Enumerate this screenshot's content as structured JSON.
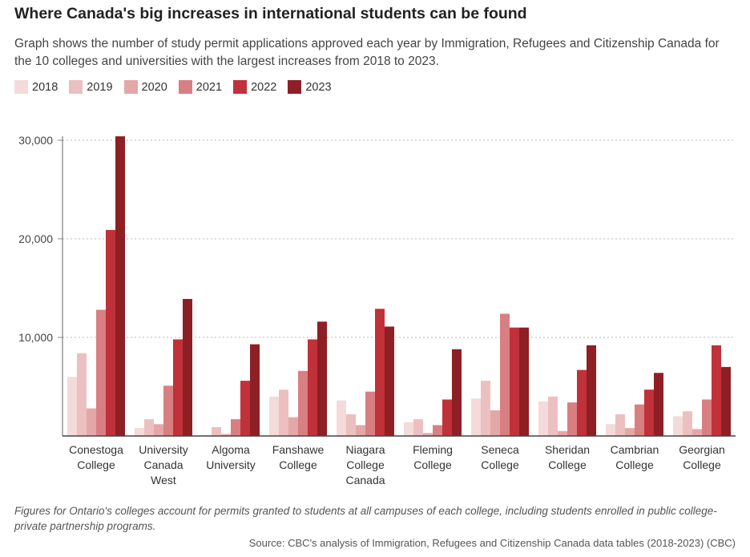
{
  "chart_data": {
    "type": "bar",
    "title": "Where Canada's big increases in international students can be found",
    "subtitle": "Graph shows the number of study permit applications approved each year by Immigration, Refugees and Citizenship Canada for the 10 colleges and universities with the largest increases from 2018 to 2023.",
    "categories": [
      [
        "Conestoga",
        "College"
      ],
      [
        "University",
        "Canada",
        "West"
      ],
      [
        "Algoma",
        "University"
      ],
      [
        "Fanshawe",
        "College"
      ],
      [
        "Niagara",
        "College",
        "Canada"
      ],
      [
        "Fleming",
        "College"
      ],
      [
        "Seneca",
        "College"
      ],
      [
        "Sheridan",
        "College"
      ],
      [
        "Cambrian",
        "College"
      ],
      [
        "Georgian",
        "College"
      ]
    ],
    "series": [
      {
        "name": "2018",
        "color": "#f4dada",
        "values": [
          6000,
          800,
          100,
          4000,
          3600,
          1400,
          3800,
          3500,
          1200,
          2000
        ]
      },
      {
        "name": "2019",
        "color": "#ecc0c0",
        "values": [
          8400,
          1700,
          900,
          4700,
          2200,
          1700,
          5600,
          4000,
          2200,
          2500
        ]
      },
      {
        "name": "2020",
        "color": "#e4a7a7",
        "values": [
          2800,
          1200,
          200,
          1900,
          1100,
          300,
          2600,
          500,
          800,
          700
        ]
      },
      {
        "name": "2021",
        "color": "#d87f82",
        "values": [
          12800,
          5100,
          1700,
          6600,
          4500,
          1100,
          12400,
          3400,
          3200,
          3700
        ]
      },
      {
        "name": "2022",
        "color": "#c0313a",
        "values": [
          20900,
          9800,
          5600,
          9800,
          12900,
          3700,
          11000,
          6700,
          4700,
          9200
        ]
      },
      {
        "name": "2023",
        "color": "#8e1f24",
        "values": [
          30400,
          13900,
          9300,
          11600,
          11100,
          8800,
          11000,
          9200,
          6400,
          7000
        ]
      }
    ],
    "yticks": [
      {
        "value": 10000,
        "label": "10,000"
      },
      {
        "value": 20000,
        "label": "20,000"
      },
      {
        "value": 30000,
        "label": "30,000"
      }
    ],
    "ylim": [
      0,
      32500
    ],
    "grid": true,
    "legend_position": "top-left"
  },
  "note": "Figures for Ontario's colleges account for permits granted to students at all campuses of each college, including students enrolled in public college-private partnership programs.",
  "source": "Source: CBC's analysis of Immigration, Refugees and Citizenship Canada data tables (2018-2023) (CBC)"
}
